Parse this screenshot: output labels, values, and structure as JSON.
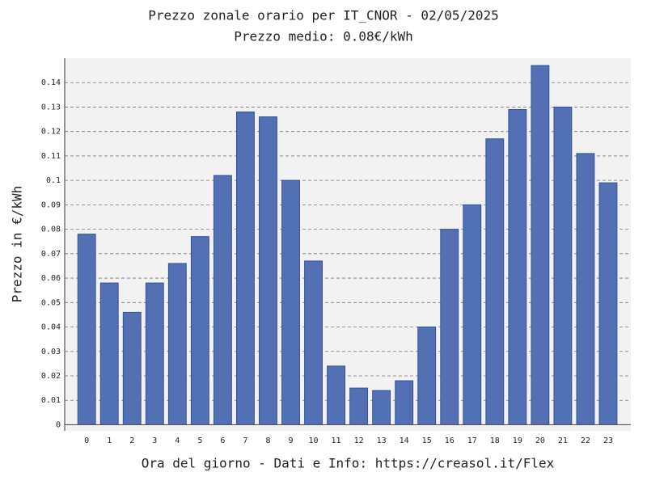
{
  "chart_data": {
    "type": "bar",
    "title": "Prezzo zonale orario per IT_CNOR - 02/05/2025",
    "subtitle": "Prezzo medio: 0.08€/kWh",
    "x_label": "Ora del giorno - Dati e Info: https://creasol.it/Flex",
    "y_label": "Prezzo in €/kWh",
    "categories": [
      "0",
      "1",
      "2",
      "3",
      "4",
      "5",
      "6",
      "7",
      "8",
      "9",
      "10",
      "11",
      "12",
      "13",
      "14",
      "15",
      "16",
      "17",
      "18",
      "19",
      "20",
      "21",
      "22",
      "23"
    ],
    "values": [
      0.078,
      0.058,
      0.046,
      0.058,
      0.066,
      0.077,
      0.102,
      0.128,
      0.126,
      0.1,
      0.067,
      0.024,
      0.015,
      0.014,
      0.018,
      0.04,
      0.08,
      0.09,
      0.117,
      0.129,
      0.147,
      0.13,
      0.111,
      0.099
    ],
    "color": "#5470b5",
    "ylim": [
      -0.0025,
      0.15
    ],
    "yticks": [
      0,
      0.01,
      0.02,
      0.03,
      0.04,
      0.05,
      0.06,
      0.07,
      0.08,
      0.09,
      0.1,
      0.11,
      0.12,
      0.13,
      0.14
    ],
    "grid": true
  }
}
